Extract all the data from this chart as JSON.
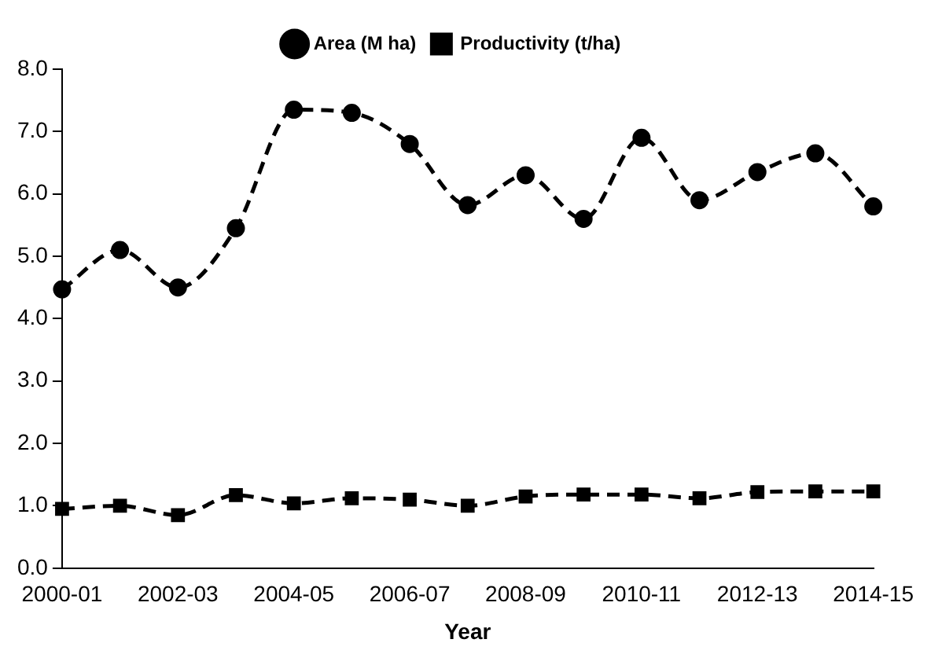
{
  "chart_data": {
    "type": "line",
    "xlabel": "Year",
    "categories": [
      "2000-01",
      null,
      "2002-03",
      null,
      "2004-05",
      null,
      "2006-07",
      null,
      "2008-09",
      null,
      "2010-11",
      null,
      "2012-13",
      null,
      "2014-15"
    ],
    "series": [
      {
        "name": "Area (M ha)",
        "color": "#000000",
        "marker": "circle",
        "values": [
          4.47,
          5.1,
          4.5,
          5.45,
          7.35,
          7.3,
          6.8,
          5.82,
          6.3,
          5.6,
          6.9,
          5.9,
          6.35,
          6.65,
          5.8
        ]
      },
      {
        "name": "Productivity (t/ha)",
        "color": "#000000",
        "marker": "square",
        "values": [
          0.95,
          1.0,
          0.85,
          1.17,
          1.04,
          1.12,
          1.1,
          1.0,
          1.15,
          1.18,
          1.18,
          1.12,
          1.22,
          1.23,
          1.23
        ]
      }
    ],
    "ylim": [
      0,
      8
    ],
    "yticks": [
      {
        "value": 0,
        "label": "0.0"
      },
      {
        "value": 1,
        "label": "1.0"
      },
      {
        "value": 2,
        "label": "2.0"
      },
      {
        "value": 3,
        "label": "3.0"
      },
      {
        "value": 4,
        "label": "4.0"
      },
      {
        "value": 5,
        "label": "5.0"
      },
      {
        "value": 6,
        "label": "6.0"
      },
      {
        "value": 7,
        "label": "7.0"
      },
      {
        "value": 8,
        "label": "8.0"
      }
    ],
    "grid": false,
    "legend": "top",
    "line_style": "dashed"
  }
}
